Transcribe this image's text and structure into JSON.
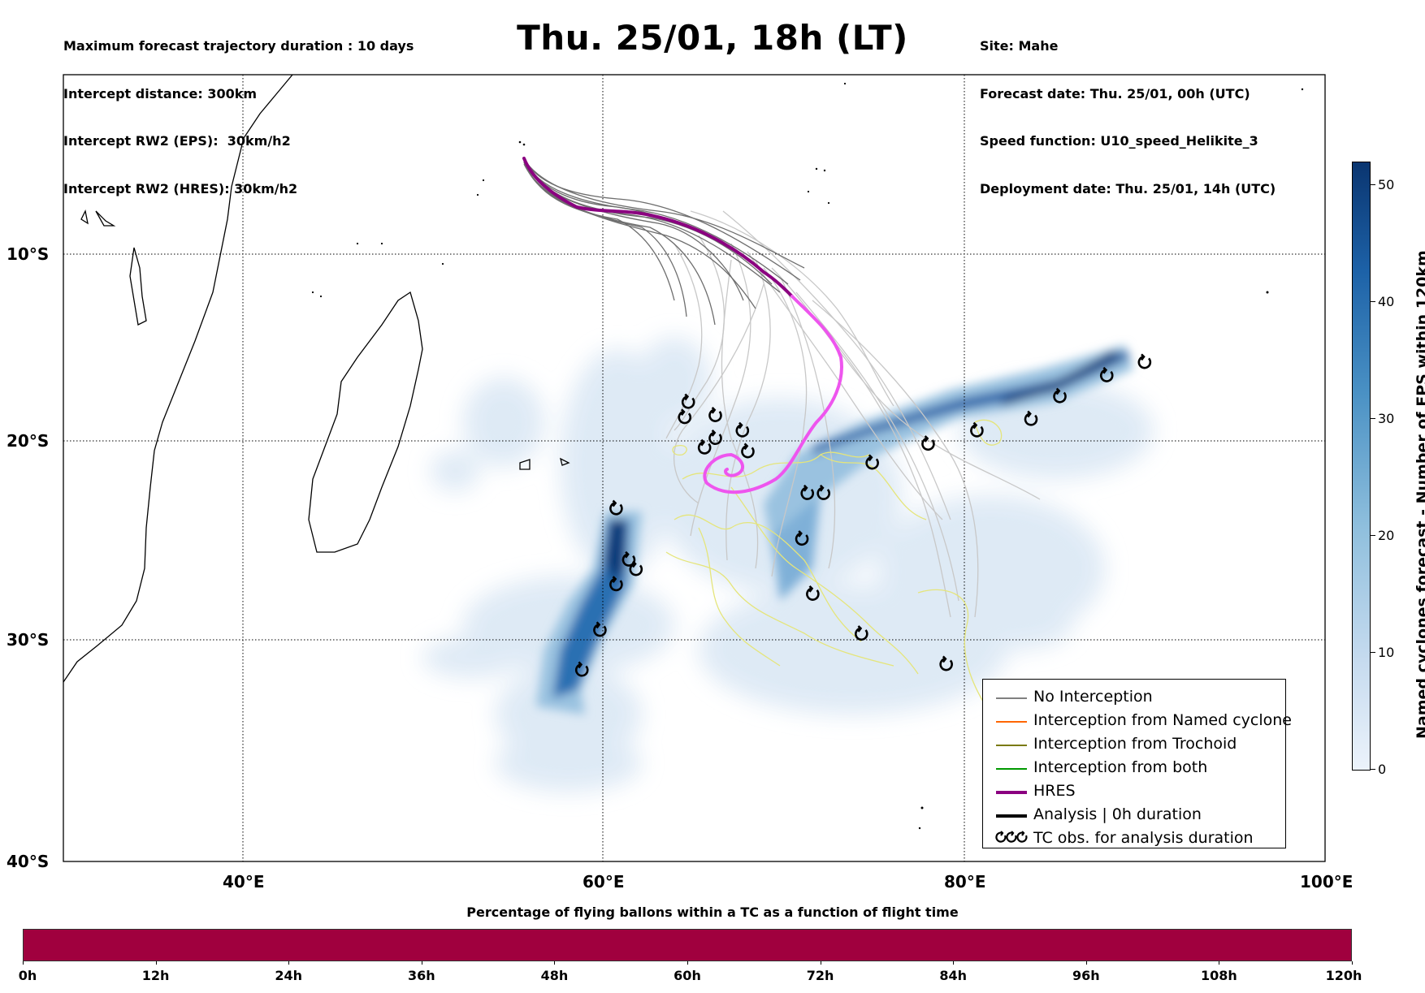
{
  "header": {
    "left_lines": [
      "Maximum forecast trajectory duration : 10 days",
      "Intercept distance: 300km",
      "Intercept RW2 (EPS):  30km/h2",
      "Intercept RW2 (HRES): 30km/h2"
    ],
    "title": "Thu. 25/01, 18h (LT)",
    "right_lines": [
      "Site: Mahe",
      "Forecast date: Thu. 25/01, 00h (UTC)",
      "Speed function: U10_speed_Helikite_3",
      "Deployment date: Thu. 25/01, 14h (UTC)"
    ]
  },
  "map": {
    "lat_labels": [
      "10°S",
      "20°S",
      "30°S",
      "40°S"
    ],
    "lon_labels": [
      "40°E",
      "60°E",
      "80°E",
      "100°E"
    ],
    "lon_range": [
      30,
      100
    ],
    "lat_range": [
      -40,
      -0.2
    ],
    "gridlines": "dotted",
    "colors": {
      "land_outline": "#000000",
      "no_interception": "#808080",
      "eps_light": "#c8c8c8",
      "trochoid_tracks": "#e8e87a",
      "hres_before": "#8b0080",
      "hres_after": "#ee55ee",
      "tc_marker": "#000000"
    },
    "tc_obs_lonlat": [
      [
        90.0,
        -15.7
      ],
      [
        87.9,
        -16.4
      ],
      [
        85.3,
        -17.5
      ],
      [
        83.7,
        -18.7
      ],
      [
        80.7,
        -19.3
      ],
      [
        78.0,
        -20.0
      ],
      [
        74.9,
        -21.0
      ],
      [
        72.2,
        -22.6
      ],
      [
        71.3,
        -22.6
      ],
      [
        71.0,
        -25.0
      ],
      [
        71.6,
        -27.9
      ],
      [
        74.3,
        -30.0
      ],
      [
        79.0,
        -31.6
      ],
      [
        68.0,
        -20.4
      ],
      [
        67.7,
        -19.3
      ],
      [
        66.2,
        -19.7
      ],
      [
        65.6,
        -20.2
      ],
      [
        66.2,
        -18.5
      ],
      [
        64.7,
        -17.8
      ],
      [
        64.5,
        -18.6
      ],
      [
        60.7,
        -23.4
      ],
      [
        61.4,
        -26.1
      ],
      [
        61.8,
        -26.6
      ],
      [
        60.7,
        -27.4
      ],
      [
        59.8,
        -29.8
      ],
      [
        58.8,
        -31.9
      ]
    ]
  },
  "legend": {
    "items": [
      {
        "label": "No Interception",
        "color": "#808080",
        "width": 1.5
      },
      {
        "label": "Interception from Named cyclone",
        "color": "#ff6600",
        "width": 1.5
      },
      {
        "label": "Interception from Trochoid",
        "color": "#7a7a10",
        "width": 1.5
      },
      {
        "label": "Interception from both",
        "color": "#009900",
        "width": 1.5
      },
      {
        "label": "HRES",
        "color": "#8b0080",
        "width": 4
      },
      {
        "label": "Analysis | 0h duration",
        "color": "#000000",
        "width": 4
      },
      {
        "label": "TC obs. for analysis duration",
        "color": "#000000",
        "marker": "tc"
      }
    ]
  },
  "colorbar": {
    "title": "Named cyclones forecast - Number of EPS within 120km",
    "ticks": [
      "0",
      "10",
      "20",
      "30",
      "40",
      "50"
    ],
    "range": [
      0,
      52
    ]
  },
  "time_bar": {
    "title": "Percentage of flying ballons within a TC as a function of flight time",
    "ticks": [
      "0h",
      "12h",
      "24h",
      "36h",
      "48h",
      "60h",
      "72h",
      "84h",
      "96h",
      "108h",
      "120h"
    ]
  }
}
